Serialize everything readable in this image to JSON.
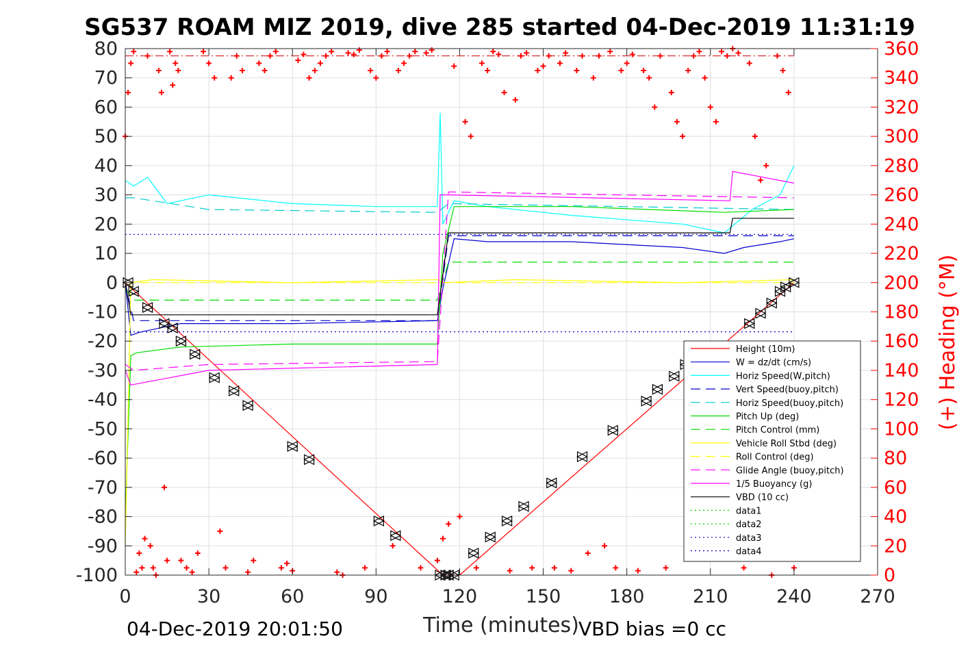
{
  "chart_data": {
    "type": "line",
    "title": "SG537 ROAM MIZ 2019, dive 285 started 04-Dec-2019 11:31:19",
    "xlabel": "Time (minutes)",
    "ylabel": "",
    "y2label": "(+) Heading (°M)",
    "xlim": [
      0,
      270
    ],
    "ylim": [
      -100,
      80
    ],
    "y2lim": [
      0,
      360
    ],
    "xticks": [
      0,
      30,
      60,
      90,
      120,
      150,
      180,
      210,
      240,
      270
    ],
    "yticks": [
      80,
      70,
      60,
      50,
      40,
      30,
      20,
      10,
      0,
      -10,
      -20,
      -30,
      -40,
      -50,
      -60,
      -70,
      -80,
      -90,
      -100
    ],
    "y2ticks": [
      360,
      340,
      320,
      300,
      280,
      260,
      240,
      220,
      200,
      180,
      160,
      140,
      120,
      100,
      80,
      60,
      40,
      20,
      0
    ],
    "grid": true,
    "legend_position": "lower-right",
    "footer_left": "04-Dec-2019 20:01:50",
    "footer_right": "VBD bias =0 cc",
    "series": [
      {
        "name": "Height (10m)",
        "color": "#ff0000",
        "style": "solid",
        "x": [
          0,
          114,
          120,
          240
        ],
        "y": [
          0,
          -100,
          -100,
          0
        ]
      },
      {
        "name": "W = dz/dt (cm/s)",
        "color": "#0000cc",
        "style": "solid",
        "x": [
          0,
          2,
          5,
          20,
          60,
          112,
          114,
          118,
          130,
          160,
          200,
          215,
          222,
          235,
          240
        ],
        "y": [
          0,
          -18,
          -17,
          -14,
          -14,
          -13,
          -2,
          15,
          14,
          14,
          12,
          10,
          12,
          14,
          15
        ]
      },
      {
        "name": "Horiz Speed(W,pitch)",
        "color": "#00ffff",
        "style": "solid",
        "x": [
          0,
          3,
          8,
          15,
          30,
          60,
          90,
          112,
          113,
          114,
          118,
          130,
          160,
          200,
          215,
          225,
          235,
          240
        ],
        "y": [
          35,
          33,
          36,
          27,
          30,
          27,
          26,
          26,
          58,
          20,
          28,
          26,
          23,
          20,
          17,
          25,
          30,
          40
        ]
      },
      {
        "name": "Vert Speed(buoy,pitch)",
        "color": "#0000cc",
        "style": "dashed",
        "x": [
          0,
          3,
          112,
          116,
          240
        ],
        "y": [
          0,
          -13,
          -13,
          16,
          16
        ]
      },
      {
        "name": "Horiz Speed(buoy,pitch)",
        "color": "#00cccc",
        "style": "dashed",
        "x": [
          0,
          3,
          30,
          112,
          116,
          240
        ],
        "y": [
          29,
          29,
          25,
          24,
          27,
          25
        ]
      },
      {
        "name": "Pitch Up (deg)",
        "color": "#00dd00",
        "style": "solid",
        "x": [
          0,
          2,
          4,
          20,
          60,
          112,
          114,
          118,
          160,
          215,
          240
        ],
        "y": [
          -80,
          -25,
          -24,
          -22,
          -21,
          -21,
          10,
          26,
          26,
          24,
          25
        ]
      },
      {
        "name": "Pitch Control (mm)",
        "color": "#00dd00",
        "style": "dashed",
        "x": [
          0,
          3,
          112,
          116,
          240
        ],
        "y": [
          -2,
          -6,
          -6,
          7,
          7
        ]
      },
      {
        "name": "Vehicle Roll Stbd (deg)",
        "color": "#ffff00",
        "style": "solid",
        "x": [
          0,
          2,
          10,
          60,
          112,
          114,
          140,
          200,
          240
        ],
        "y": [
          -90,
          0,
          1,
          0,
          1,
          0,
          1,
          0,
          1
        ]
      },
      {
        "name": "Roll Control (deg)",
        "color": "#ffff00",
        "style": "dashed",
        "x": [
          0,
          240
        ],
        "y": [
          0,
          0
        ]
      },
      {
        "name": "Glide Angle (buoy,pitch)",
        "color": "#ff00ff",
        "style": "dashed",
        "x": [
          0,
          3,
          30,
          112,
          116,
          240
        ],
        "y": [
          -28,
          -30,
          -28,
          -27,
          31,
          29
        ]
      },
      {
        "name": "1/5 Buoyancy (g)",
        "color": "#ff00ff",
        "style": "solid",
        "x": [
          0,
          2,
          30,
          112,
          113,
          116,
          217,
          218,
          240
        ],
        "y": [
          -30,
          -35,
          -30,
          -28,
          30,
          30,
          28,
          38,
          34
        ]
      },
      {
        "name": "VBD (10 cc)",
        "color": "#000000",
        "style": "solid",
        "x": [
          0,
          2,
          112,
          116,
          217,
          218,
          240
        ],
        "y": [
          0,
          -11,
          -11,
          17,
          17,
          22,
          22
        ]
      },
      {
        "name": "data1",
        "color": "#00dd00",
        "style": "dotted",
        "x": [],
        "y": []
      },
      {
        "name": "data2",
        "color": "#00dd00",
        "style": "dotted",
        "x": [],
        "y": []
      },
      {
        "name": "data3",
        "color": "#0000cc",
        "style": "dotted",
        "x": [
          0,
          240
        ],
        "y": [
          16.5,
          16.5
        ]
      },
      {
        "name": "data4",
        "color": "#0000cc",
        "style": "dotted",
        "x": [
          0,
          240
        ],
        "y": [
          -16.8,
          -16.8
        ]
      }
    ],
    "ref_line": {
      "color": "#cc0000",
      "style": "dashdot",
      "y2": 355
    },
    "heading_series": {
      "name": "(+) Heading",
      "color": "#ff0000",
      "x": [
        0,
        1,
        2,
        3,
        4,
        5,
        6,
        7,
        8,
        9,
        10,
        11,
        12,
        13,
        14,
        15,
        16,
        17,
        18,
        19,
        20,
        22,
        24,
        26,
        28,
        30,
        32,
        34,
        36,
        38,
        40,
        42,
        44,
        46,
        48,
        50,
        52,
        54,
        56,
        58,
        60,
        62,
        64,
        66,
        68,
        70,
        72,
        74,
        76,
        78,
        80,
        82,
        84,
        86,
        88,
        90,
        92,
        94,
        96,
        98,
        100,
        102,
        104,
        106,
        108,
        110,
        112,
        114,
        116,
        118,
        120,
        122,
        124,
        126,
        128,
        130,
        132,
        134,
        136,
        138,
        140,
        142,
        144,
        146,
        148,
        150,
        152,
        154,
        156,
        158,
        160,
        162,
        164,
        166,
        168,
        170,
        172,
        174,
        176,
        178,
        180,
        182,
        184,
        186,
        188,
        190,
        192,
        194,
        196,
        198,
        200,
        202,
        204,
        206,
        208,
        210,
        212,
        214,
        216,
        218,
        220,
        222,
        224,
        226,
        228,
        230,
        232,
        234,
        236,
        238,
        240
      ],
      "y": [
        300,
        330,
        350,
        358,
        2,
        15,
        5,
        25,
        355,
        20,
        5,
        0,
        345,
        330,
        60,
        10,
        358,
        335,
        350,
        345,
        10,
        5,
        2,
        15,
        358,
        350,
        340,
        30,
        5,
        340,
        355,
        345,
        2,
        10,
        350,
        345,
        355,
        358,
        5,
        8,
        3,
        352,
        356,
        340,
        345,
        350,
        355,
        358,
        2,
        0,
        357,
        356,
        359,
        5,
        345,
        340,
        355,
        358,
        20,
        345,
        350,
        355,
        358,
        5,
        357,
        359,
        10,
        25,
        35,
        348,
        40,
        310,
        300,
        5,
        350,
        345,
        358,
        356,
        330,
        3,
        325,
        355,
        357,
        5,
        345,
        348,
        355,
        5,
        350,
        357,
        3,
        345,
        355,
        15,
        340,
        355,
        20,
        358,
        5,
        345,
        350,
        356,
        3,
        345,
        340,
        320,
        355,
        5,
        330,
        310,
        300,
        345,
        355,
        358,
        340,
        320,
        310,
        358,
        355,
        360,
        357,
        5,
        350,
        300,
        270,
        280,
        0,
        355,
        345,
        330,
        5
      ]
    },
    "markers": {
      "symbol": "triangle-pair",
      "color": "#000000",
      "x": [
        1,
        3,
        8,
        14,
        17,
        20,
        25,
        32,
        39,
        44,
        60,
        66,
        91,
        97,
        113,
        115,
        116,
        118,
        125,
        131,
        137,
        143,
        153,
        164,
        175,
        187,
        191,
        197,
        201,
        224,
        228,
        232,
        235,
        237,
        240
      ],
      "y": [
        0,
        -3,
        -8.5,
        -14,
        -15.5,
        -20,
        -24.5,
        -32.5,
        -37,
        -42,
        -56,
        -60.5,
        -81.5,
        -86.5,
        -100,
        -100,
        -100,
        -100,
        -92.5,
        -87,
        -81.5,
        -76.5,
        -68.5,
        -59.5,
        -50.5,
        -40.5,
        -36.5,
        -32,
        -28,
        -14,
        -10.5,
        -7,
        -3,
        -1.5,
        0
      ]
    },
    "legend": [
      {
        "label": "Height (10m)",
        "color": "#ff0000",
        "style": "solid"
      },
      {
        "label": "W = dz/dt (cm/s)",
        "color": "#0000cc",
        "style": "solid"
      },
      {
        "label": "Horiz Speed(W,pitch)",
        "color": "#00ffff",
        "style": "solid"
      },
      {
        "label": "Vert Speed(buoy,pitch)",
        "color": "#0000cc",
        "style": "dashed"
      },
      {
        "label": "Horiz Speed(buoy,pitch)",
        "color": "#00cccc",
        "style": "dashed"
      },
      {
        "label": "Pitch Up (deg)",
        "color": "#00dd00",
        "style": "solid"
      },
      {
        "label": "Pitch Control (mm)",
        "color": "#00dd00",
        "style": "dashed"
      },
      {
        "label": "Vehicle Roll Stbd (deg)",
        "color": "#ffff00",
        "style": "solid"
      },
      {
        "label": "Roll Control (deg)",
        "color": "#ffff00",
        "style": "dashed"
      },
      {
        "label": "Glide Angle (buoy,pitch)",
        "color": "#ff00ff",
        "style": "dashed"
      },
      {
        "label": "1/5 Buoyancy (g)",
        "color": "#ff00ff",
        "style": "solid"
      },
      {
        "label": "VBD (10 cc)",
        "color": "#000000",
        "style": "solid"
      },
      {
        "label": "data1",
        "color": "#00dd00",
        "style": "dotted"
      },
      {
        "label": "data2",
        "color": "#00dd00",
        "style": "dotted"
      },
      {
        "label": "data3",
        "color": "#0000cc",
        "style": "dotted"
      },
      {
        "label": "data4",
        "color": "#0000cc",
        "style": "dotted"
      }
    ]
  }
}
